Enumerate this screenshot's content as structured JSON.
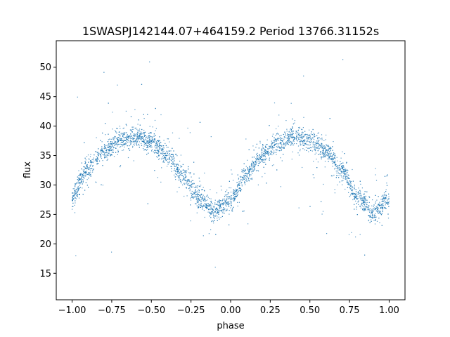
{
  "chart_data": {
    "type": "scatter",
    "title": "1SWASPJ142144.07+464159.2 Period 13766.31152s",
    "xlabel": "phase",
    "ylabel": "flux",
    "xlim": [
      -1.1,
      1.1
    ],
    "ylim": [
      10.5,
      54.5
    ],
    "xticks": [
      -1.0,
      -0.75,
      -0.5,
      -0.25,
      0.0,
      0.25,
      0.5,
      0.75,
      1.0
    ],
    "xtick_labels": [
      "−1.00",
      "−0.75",
      "−0.50",
      "−0.25",
      "0.00",
      "0.25",
      "0.50",
      "0.75",
      "1.00"
    ],
    "yticks": [
      15,
      20,
      25,
      30,
      35,
      40,
      45,
      50
    ],
    "ytick_labels": [
      "15",
      "20",
      "25",
      "30",
      "35",
      "40",
      "45",
      "50"
    ],
    "grid": false,
    "point_color": "#1f77b4",
    "series": [
      {
        "profile_phase": [
          -1.0,
          -0.9,
          -0.8,
          -0.7,
          -0.6,
          -0.5,
          -0.4,
          -0.3,
          -0.2,
          -0.1,
          0.0,
          0.1,
          0.2,
          0.3,
          0.4,
          0.5,
          0.6,
          0.7,
          0.8,
          0.9,
          1.0
        ],
        "profile_flux": [
          28.0,
          32.8,
          35.8,
          37.6,
          38.2,
          37.4,
          35.0,
          31.5,
          27.8,
          25.4,
          27.5,
          31.8,
          35.0,
          37.2,
          38.3,
          37.6,
          35.8,
          32.5,
          28.0,
          25.3,
          27.5
        ]
      }
    ]
  }
}
